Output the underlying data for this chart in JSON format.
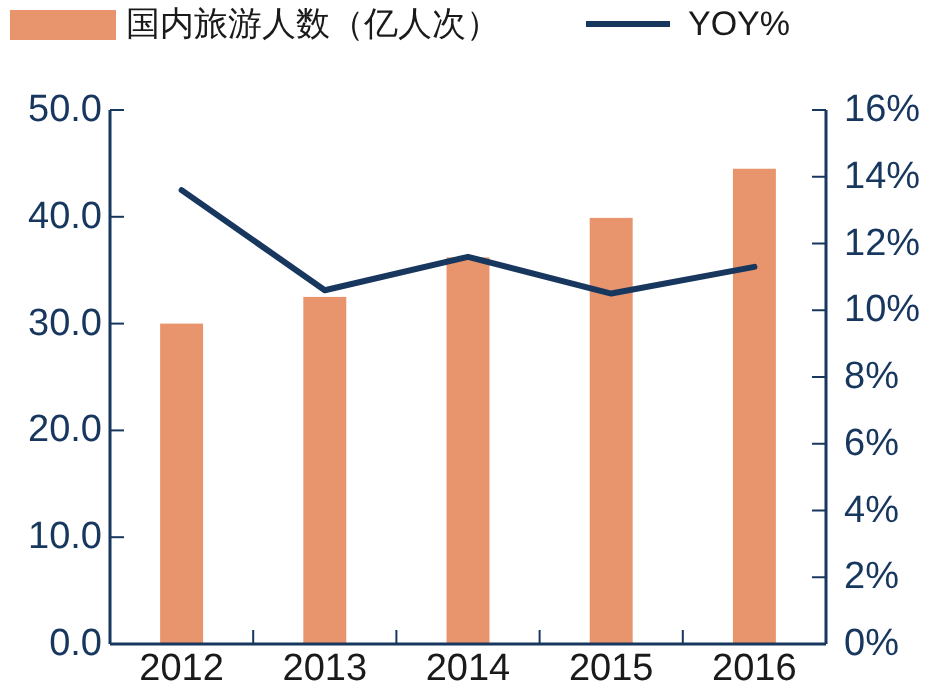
{
  "chart_data": {
    "type": "bar",
    "categories": [
      "2012",
      "2013",
      "2014",
      "2015",
      "2016"
    ],
    "series": [
      {
        "name": "国内旅游人数（亿人次）",
        "color": "#e8956e",
        "values": [
          30.0,
          32.5,
          36.2,
          39.9,
          44.5
        ]
      },
      {
        "name": "YOY%",
        "type": "line",
        "axis": "y2",
        "color": "#17375e",
        "values": [
          13.6,
          10.6,
          11.6,
          10.5,
          11.3
        ]
      }
    ],
    "ylim": [
      0,
      50
    ],
    "yticks": [
      {
        "value": 0,
        "label": "0.0"
      },
      {
        "value": 10,
        "label": "10.0"
      },
      {
        "value": 20,
        "label": "20.0"
      },
      {
        "value": 30,
        "label": "30.0"
      },
      {
        "value": 40,
        "label": "40.0"
      },
      {
        "value": 50,
        "label": "50.0"
      }
    ],
    "y2lim": [
      0,
      16
    ],
    "y2ticks": [
      {
        "value": 0,
        "label": "0%"
      },
      {
        "value": 2,
        "label": "2%"
      },
      {
        "value": 4,
        "label": "4%"
      },
      {
        "value": 6,
        "label": "6%"
      },
      {
        "value": 8,
        "label": "8%"
      },
      {
        "value": 10,
        "label": "10%"
      },
      {
        "value": 12,
        "label": "12%"
      },
      {
        "value": 14,
        "label": "14%"
      },
      {
        "value": 16,
        "label": "16%"
      }
    ],
    "legend": "top",
    "grid": false,
    "marker": "none",
    "line_style": "solid"
  }
}
